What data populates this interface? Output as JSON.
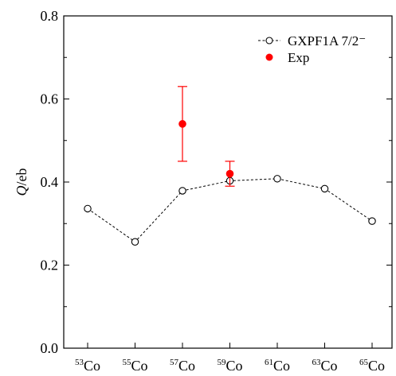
{
  "chart_data": {
    "type": "scatter",
    "ylabel_italic": "Q",
    "ylabel_rest": "/eb",
    "ylim": [
      0.0,
      0.8
    ],
    "yticks": [
      "0.0",
      "0.2",
      "0.4",
      "0.6",
      "0.8"
    ],
    "categories": [
      {
        "mass": "53",
        "element": "Co"
      },
      {
        "mass": "55",
        "element": "Co"
      },
      {
        "mass": "57",
        "element": "Co"
      },
      {
        "mass": "59",
        "element": "Co"
      },
      {
        "mass": "61",
        "element": "Co"
      },
      {
        "mass": "63",
        "element": "Co"
      },
      {
        "mass": "65",
        "element": "Co"
      }
    ],
    "series": [
      {
        "name": "GXPF1A 7/2⁻",
        "style": "dashed-line-open-circles",
        "color": "#000000",
        "values": [
          0.336,
          0.256,
          0.379,
          0.403,
          0.408,
          0.384,
          0.306
        ]
      },
      {
        "name": "Exp",
        "style": "filled-circles-errorbars",
        "color": "#ff0000",
        "points": [
          {
            "category_index": 2,
            "value": 0.54,
            "error": 0.09
          },
          {
            "category_index": 3,
            "value": 0.42,
            "error": 0.03
          }
        ]
      }
    ],
    "legend_position": "top-right",
    "grid": false
  }
}
